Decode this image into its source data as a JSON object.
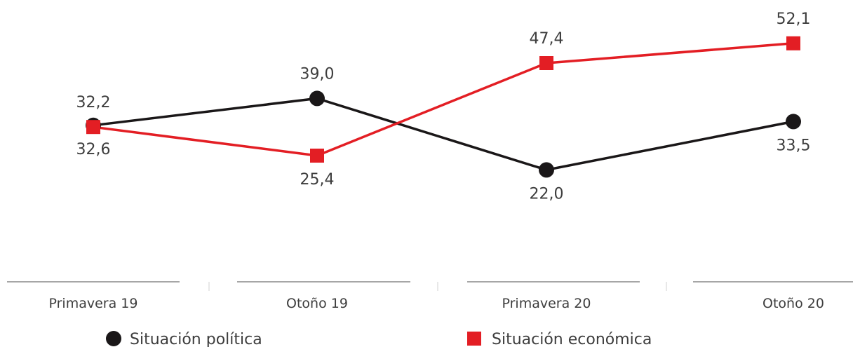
{
  "chart_data": {
    "type": "line",
    "categories": [
      "Primavera 19",
      "Otoño 19",
      "Primavera 20",
      "Otoño 20"
    ],
    "series": [
      {
        "name": "Situación política",
        "values": [
          32.6,
          39.0,
          22.0,
          33.5
        ],
        "labels": [
          "32,6",
          "39,0",
          "22,0",
          "33,5"
        ],
        "color": "#1a1718",
        "marker": "circle"
      },
      {
        "name": "Situación económica",
        "values": [
          32.2,
          25.4,
          47.4,
          52.1
        ],
        "labels": [
          "32,2",
          "25,4",
          "47,4",
          "52,1"
        ],
        "color": "#e31e24",
        "marker": "square"
      }
    ],
    "legend_position": "bottom",
    "grid": false
  }
}
